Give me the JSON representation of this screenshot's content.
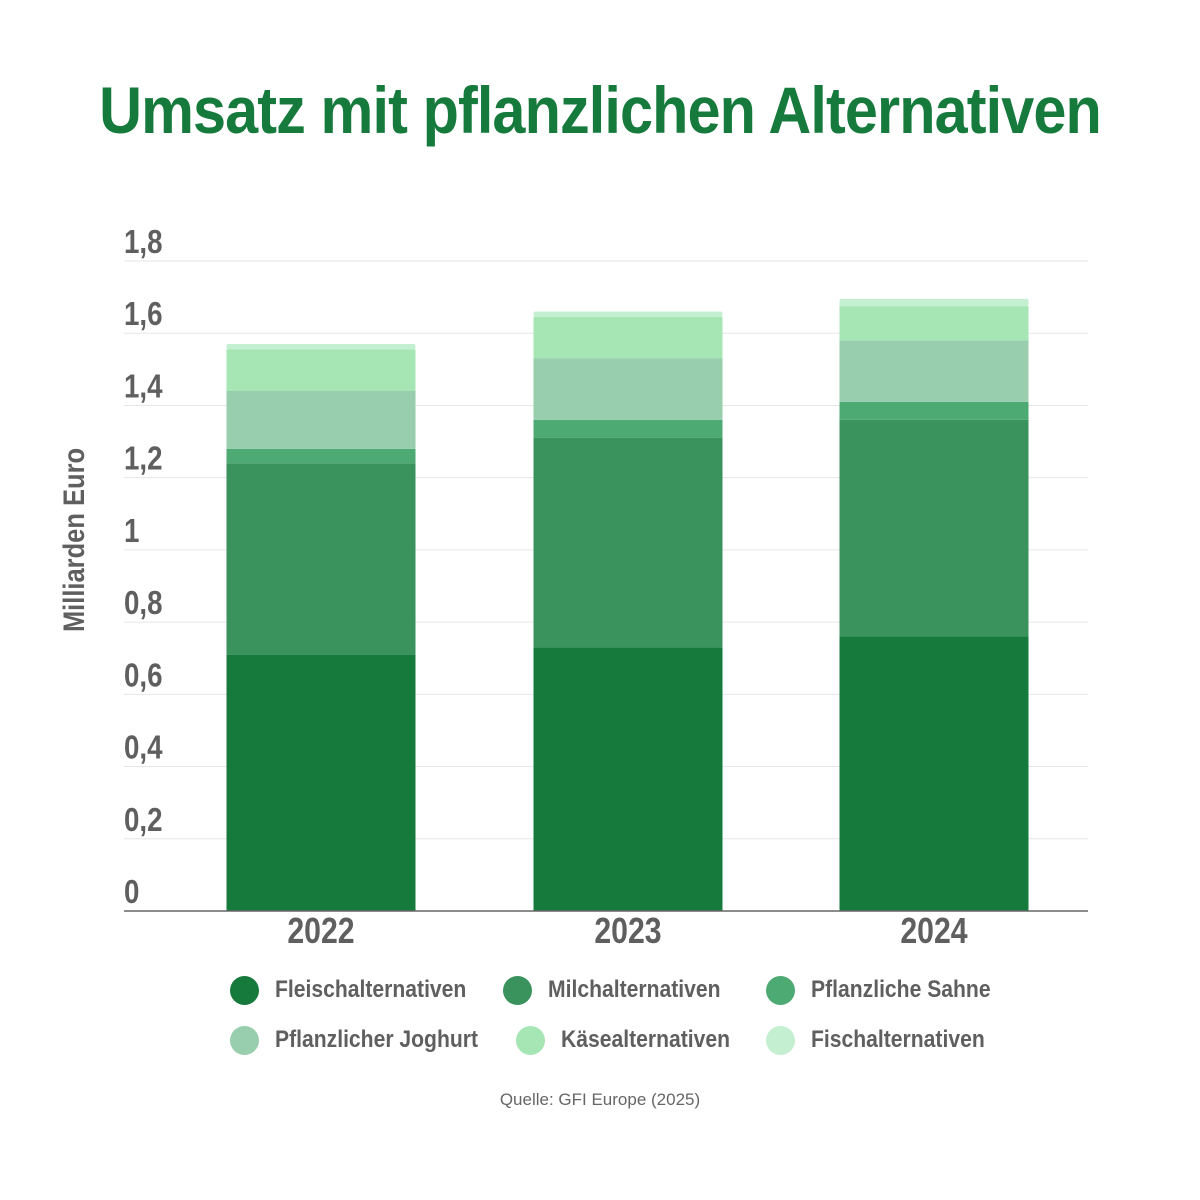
{
  "chart_data": {
    "type": "bar",
    "stacked": true,
    "title": "Umsatz mit pflanzlichen Alternativen",
    "ylabel": "Milliarden Euro",
    "xlabel": "",
    "ylim": [
      0,
      1.8
    ],
    "yticks": [
      0,
      0.2,
      0.4,
      0.6,
      0.8,
      1,
      1.2,
      1.4,
      1.6,
      1.8
    ],
    "ytick_labels": [
      "0",
      "0,2",
      "0,4",
      "0,6",
      "0,8",
      "1",
      "1,2",
      "1,4",
      "1,6",
      "1,8"
    ],
    "categories": [
      "2022",
      "2023",
      "2024"
    ],
    "grid": true,
    "legend_position": "bottom",
    "series": [
      {
        "name": "Fleischalternativen",
        "color": "#167a3c",
        "values": [
          0.71,
          0.73,
          0.76
        ]
      },
      {
        "name": "Milchalternativen",
        "color": "#3a925d",
        "values": [
          0.53,
          0.58,
          0.6
        ]
      },
      {
        "name": "Pflanzliche Sahne",
        "color": "#4daa72",
        "values": [
          0.04,
          0.05,
          0.05
        ]
      },
      {
        "name": "Pflanzlicher Joghurt",
        "color": "#98ceae",
        "values": [
          0.16,
          0.17,
          0.17
        ]
      },
      {
        "name": "Käsealternativen",
        "color": "#a6e6b5",
        "values": [
          0.115,
          0.115,
          0.095
        ]
      },
      {
        "name": "Fischalternativen",
        "color": "#c4efd0",
        "values": [
          0.015,
          0.015,
          0.02
        ]
      }
    ]
  },
  "source": "Quelle: GFI Europe (2025)"
}
